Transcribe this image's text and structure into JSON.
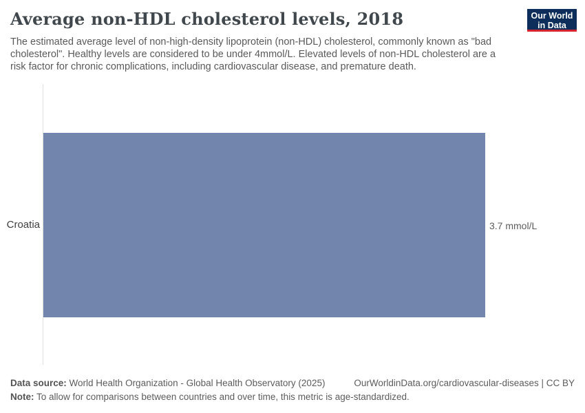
{
  "header": {
    "title": "Average non-HDL cholesterol levels, 2018",
    "subtitle": "The estimated average level of non-high-density lipoprotein (non-HDL) cholesterol, commonly known as \"bad cholesterol\". Healthy levels are considered to be under 4mmol/L. Elevated levels of non-HDL cholesterol are a risk factor for chronic complications, including cardiovascular disease, and premature death.",
    "logo": {
      "line1": "Our World",
      "line2": "in Data",
      "bg_color": "#0d2e5a",
      "accent_color": "#d8242f"
    }
  },
  "chart_data": {
    "type": "bar",
    "orientation": "horizontal",
    "title": "Average non-HDL cholesterol levels, 2018",
    "categories": [
      "Croatia"
    ],
    "values": [
      3.7
    ],
    "value_labels": [
      "3.7 mmol/L"
    ],
    "unit": "mmol/L",
    "xlim": [
      0,
      3.7
    ],
    "grid": false,
    "legend": "none",
    "bar_color": "#7286ad",
    "axis_line_color": "#dedede"
  },
  "footer": {
    "datasource_label": "Data source:",
    "datasource_text": " World Health Organization - Global Health Observatory (2025)",
    "link": "OurWorldinData.org/cardiovascular-diseases | CC BY",
    "note_label": "Note:",
    "note_text": " To allow for comparisons between countries and over time, this metric is age-standardized."
  }
}
